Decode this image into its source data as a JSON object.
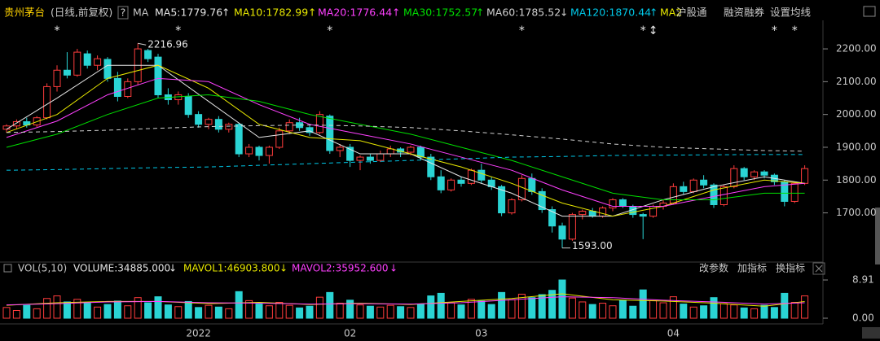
{
  "header": {
    "name": "贵州茅台",
    "mode": "(日线,前复权)",
    "help": "?",
    "ma": "MA",
    "extra": [
      "MA2",
      "沪股通",
      "融资融券",
      "设置均线"
    ]
  },
  "toolbar": [
    "改参数",
    "加指标",
    "换指标"
  ],
  "chart_data": [
    {
      "type": "candlestick",
      "categories": [
        null,
        null,
        null,
        null,
        null,
        null,
        null,
        null,
        null,
        null,
        null,
        null,
        null,
        null,
        null,
        null,
        null,
        null,
        null,
        "2022",
        null,
        null,
        null,
        null,
        null,
        null,
        null,
        null,
        null,
        null,
        null,
        null,
        null,
        null,
        "02",
        null,
        null,
        null,
        null,
        null,
        null,
        null,
        null,
        null,
        null,
        null,
        null,
        "03",
        null,
        null,
        null,
        null,
        null,
        null,
        null,
        null,
        null,
        null,
        null,
        null,
        null,
        null,
        null,
        null,
        null,
        null,
        "04",
        null,
        null,
        null,
        null,
        null,
        null,
        null,
        null,
        null,
        null,
        null,
        null,
        null
      ],
      "open": [
        1955,
        1965,
        1978,
        1968,
        1990,
        2085,
        2135,
        2120,
        2185,
        2150,
        2168,
        2110,
        2055,
        2100,
        2195,
        2175,
        2060,
        2045,
        2055,
        2000,
        1970,
        1985,
        1955,
        1970,
        1880,
        1900,
        1875,
        1900,
        1950,
        1975,
        1960,
        1945,
        1995,
        1890,
        1900,
        1860,
        1870,
        1860,
        1880,
        1895,
        1885,
        1900,
        1870,
        1810,
        1770,
        1800,
        1790,
        1830,
        1800,
        1780,
        1700,
        1740,
        1805,
        1765,
        1710,
        1660,
        1620,
        1695,
        1705,
        1690,
        1715,
        1740,
        1720,
        1695,
        1690,
        1720,
        1730,
        1780,
        1765,
        1800,
        1785,
        1725,
        1780,
        1835,
        1810,
        1825,
        1815,
        1795,
        1735,
        1790
      ],
      "high": [
        1970,
        1985,
        1990,
        1995,
        2095,
        2150,
        2190,
        2200,
        2195,
        2180,
        2175,
        2130,
        2110,
        2216.96,
        2200,
        2185,
        2080,
        2070,
        2065,
        2010,
        1990,
        1995,
        1975,
        1975,
        1910,
        1905,
        1905,
        1960,
        1985,
        1990,
        1970,
        2010,
        2000,
        1910,
        1910,
        1875,
        1880,
        1890,
        1905,
        1900,
        1905,
        1905,
        1880,
        1830,
        1805,
        1810,
        1835,
        1850,
        1810,
        1785,
        1745,
        1815,
        1820,
        1775,
        1720,
        1670,
        1700,
        1710,
        1715,
        1720,
        1745,
        1745,
        1725,
        1700,
        1725,
        1740,
        1790,
        1795,
        1805,
        1815,
        1790,
        1785,
        1845,
        1840,
        1830,
        1830,
        1820,
        1800,
        1795,
        1845
      ],
      "low": [
        1945,
        1955,
        1960,
        1962,
        1985,
        2070,
        2110,
        2115,
        2140,
        2135,
        2100,
        2040,
        2050,
        2090,
        2160,
        2050,
        2030,
        2030,
        1990,
        1960,
        1955,
        1945,
        1945,
        1870,
        1870,
        1860,
        1850,
        1895,
        1940,
        1950,
        1935,
        1940,
        1880,
        1870,
        1840,
        1830,
        1850,
        1855,
        1870,
        1870,
        1875,
        1860,
        1800,
        1760,
        1765,
        1780,
        1785,
        1790,
        1770,
        1690,
        1695,
        1735,
        1755,
        1700,
        1640,
        1593,
        1615,
        1680,
        1685,
        1685,
        1705,
        1715,
        1685,
        1620,
        1685,
        1710,
        1725,
        1755,
        1760,
        1775,
        1715,
        1720,
        1775,
        1800,
        1800,
        1805,
        1785,
        1720,
        1730,
        1785
      ],
      "close": [
        1965,
        1978,
        1968,
        1990,
        2085,
        2135,
        2120,
        2190,
        2150,
        2170,
        2110,
        2055,
        2100,
        2200,
        2170,
        2060,
        2045,
        2060,
        2000,
        1970,
        1985,
        1955,
        1970,
        1880,
        1900,
        1875,
        1900,
        1950,
        1975,
        1960,
        1945,
        2000,
        1890,
        1900,
        1860,
        1870,
        1860,
        1880,
        1895,
        1885,
        1900,
        1870,
        1810,
        1770,
        1800,
        1790,
        1830,
        1800,
        1780,
        1700,
        1740,
        1805,
        1765,
        1710,
        1660,
        1620,
        1695,
        1705,
        1690,
        1715,
        1740,
        1720,
        1695,
        1690,
        1720,
        1730,
        1780,
        1765,
        1800,
        1785,
        1725,
        1780,
        1835,
        1810,
        1825,
        1815,
        1795,
        1735,
        1790,
        1835
      ],
      "up_color": "#ff3c3c",
      "down_color": "#2ad4d4",
      "ylim": [
        1560,
        2287
      ],
      "yticks": [
        {
          "value": 1700,
          "label": "1700.00"
        },
        {
          "value": 1800,
          "label": "1800.00"
        },
        {
          "value": 1900,
          "label": "1900.00"
        },
        {
          "value": 2000,
          "label": "2000.00"
        },
        {
          "value": 2100,
          "label": "2100.00"
        },
        {
          "value": 2200,
          "label": "2200.00"
        }
      ],
      "series": [
        {
          "label": "MA5:1779.76",
          "trend": "↑",
          "color": "#e6e6e6",
          "dashed": false,
          "x": [
            0,
            5,
            10,
            15,
            20,
            25,
            30,
            35,
            40,
            45,
            50,
            55,
            60,
            65,
            70,
            75,
            79
          ],
          "values": [
            1955,
            2050,
            2150,
            2150,
            2040,
            1930,
            1950,
            1880,
            1880,
            1810,
            1760,
            1690,
            1690,
            1740,
            1780,
            1810,
            1790
          ]
        },
        {
          "label": "MA10:1782.99",
          "trend": "↑",
          "color": "#e8e800",
          "dashed": false,
          "x": [
            0,
            5,
            10,
            15,
            20,
            25,
            30,
            35,
            40,
            45,
            50,
            55,
            60,
            65,
            70,
            75,
            79
          ],
          "values": [
            1945,
            2000,
            2110,
            2150,
            2080,
            1970,
            1930,
            1920,
            1880,
            1840,
            1790,
            1730,
            1690,
            1720,
            1770,
            1800,
            1790
          ]
        },
        {
          "label": "MA20:1776.44",
          "trend": "↑",
          "color": "#ff40ff",
          "dashed": false,
          "x": [
            0,
            5,
            10,
            15,
            20,
            25,
            30,
            35,
            40,
            45,
            50,
            55,
            60,
            65,
            70,
            75,
            79
          ],
          "values": [
            1930,
            1980,
            2060,
            2110,
            2100,
            2030,
            1970,
            1940,
            1910,
            1870,
            1830,
            1770,
            1720,
            1720,
            1750,
            1780,
            1790
          ]
        },
        {
          "label": "MA30:1752.57",
          "trend": "↑",
          "color": "#00e000",
          "dashed": false,
          "x": [
            0,
            5,
            10,
            15,
            20,
            25,
            30,
            35,
            40,
            45,
            50,
            55,
            60,
            65,
            70,
            75,
            79
          ],
          "values": [
            1900,
            1940,
            2000,
            2050,
            2060,
            2040,
            2000,
            1970,
            1940,
            1900,
            1860,
            1810,
            1760,
            1740,
            1740,
            1760,
            1760
          ]
        },
        {
          "label": "MA60:1785.52",
          "trend": "↓",
          "color": "#d0d0d0",
          "dashed": true,
          "x": [
            0,
            5,
            10,
            15,
            20,
            25,
            30,
            35,
            40,
            45,
            50,
            55,
            60,
            65,
            70,
            75,
            79
          ],
          "values": [
            1945,
            1948,
            1952,
            1958,
            1963,
            1966,
            1968,
            1965,
            1960,
            1950,
            1938,
            1925,
            1910,
            1900,
            1895,
            1890,
            1888
          ]
        },
        {
          "label": "MA120:1870.44",
          "trend": "↑",
          "color": "#00c8e8",
          "dashed": true,
          "x": [
            0,
            5,
            10,
            15,
            20,
            25,
            30,
            35,
            40,
            45,
            50,
            55,
            60,
            65,
            70,
            75,
            79
          ],
          "values": [
            1830,
            1832,
            1835,
            1838,
            1840,
            1845,
            1850,
            1855,
            1860,
            1865,
            1870,
            1872,
            1875,
            1876,
            1877,
            1878,
            1878
          ]
        }
      ],
      "annotations": [
        {
          "index": 13,
          "value": 2216.96,
          "label": "2216.96"
        },
        {
          "index": 55,
          "value": 1593,
          "label": "1593.00"
        }
      ],
      "event_marks": [
        {
          "index": 5,
          "label": "*"
        },
        {
          "index": 17,
          "label": "*"
        },
        {
          "index": 32,
          "label": "*"
        },
        {
          "index": 51,
          "label": "*"
        },
        {
          "index": 63,
          "label": "*"
        },
        {
          "index": 64,
          "label": "↕"
        },
        {
          "index": 76,
          "label": "*"
        },
        {
          "index": 78,
          "label": "*"
        }
      ]
    },
    {
      "type": "bar",
      "title": "VOL(5,10)",
      "legend": [
        {
          "label": "VOLUME:34885.000",
          "trend": "↓",
          "color": "#e6e6e6"
        },
        {
          "label": "MAVOL1:46903.800",
          "trend": "↓",
          "color": "#e8e800"
        },
        {
          "label": "MAVOL2:35952.600",
          "trend": "↓",
          "color": "#ff40ff"
        }
      ],
      "values": [
        2.5,
        1.8,
        3.0,
        2.2,
        4.6,
        5.2,
        3.8,
        4.4,
        3.5,
        2.6,
        3.2,
        4.0,
        2.9,
        4.8,
        3.6,
        5.0,
        3.1,
        2.7,
        3.9,
        2.5,
        3.0,
        2.6,
        2.2,
        6.2,
        4.1,
        3.3,
        2.9,
        3.7,
        3.0,
        2.4,
        2.8,
        4.9,
        6.0,
        3.5,
        4.2,
        3.1,
        2.8,
        2.6,
        3.0,
        2.7,
        2.5,
        3.3,
        5.2,
        5.8,
        3.6,
        3.1,
        4.4,
        4.0,
        3.2,
        6.0,
        4.3,
        5.6,
        4.8,
        5.5,
        6.5,
        8.91,
        4.7,
        3.8,
        3.2,
        3.5,
        2.9,
        4.2,
        2.8,
        6.6,
        4.1,
        3.6,
        5.0,
        3.3,
        2.6,
        2.9,
        4.8,
        3.4,
        3.1,
        2.4,
        2.2,
        3.0,
        2.5,
        5.8,
        3.7,
        5.2
      ],
      "series": [
        {
          "color": "#e8e800",
          "x": [
            0,
            5,
            10,
            15,
            20,
            25,
            30,
            35,
            40,
            45,
            50,
            55,
            60,
            65,
            70,
            75,
            79
          ],
          "values": [
            3.0,
            3.6,
            3.9,
            3.9,
            3.4,
            3.7,
            3.2,
            3.5,
            3.2,
            3.9,
            4.6,
            5.7,
            4.3,
            4.0,
            3.5,
            2.8,
            3.9
          ]
        },
        {
          "color": "#ff40ff",
          "x": [
            0,
            5,
            10,
            15,
            20,
            25,
            30,
            35,
            40,
            45,
            50,
            55,
            60,
            65,
            70,
            75,
            79
          ],
          "values": [
            3.1,
            3.4,
            3.8,
            3.9,
            3.6,
            3.5,
            3.3,
            3.4,
            3.3,
            3.6,
            4.3,
            5.0,
            4.8,
            4.2,
            3.8,
            3.3,
            3.6
          ]
        }
      ],
      "ylim": [
        0,
        11
      ],
      "yticks": [
        {
          "value": 0,
          "label": "0.00"
        },
        8.91
      ]
    }
  ]
}
